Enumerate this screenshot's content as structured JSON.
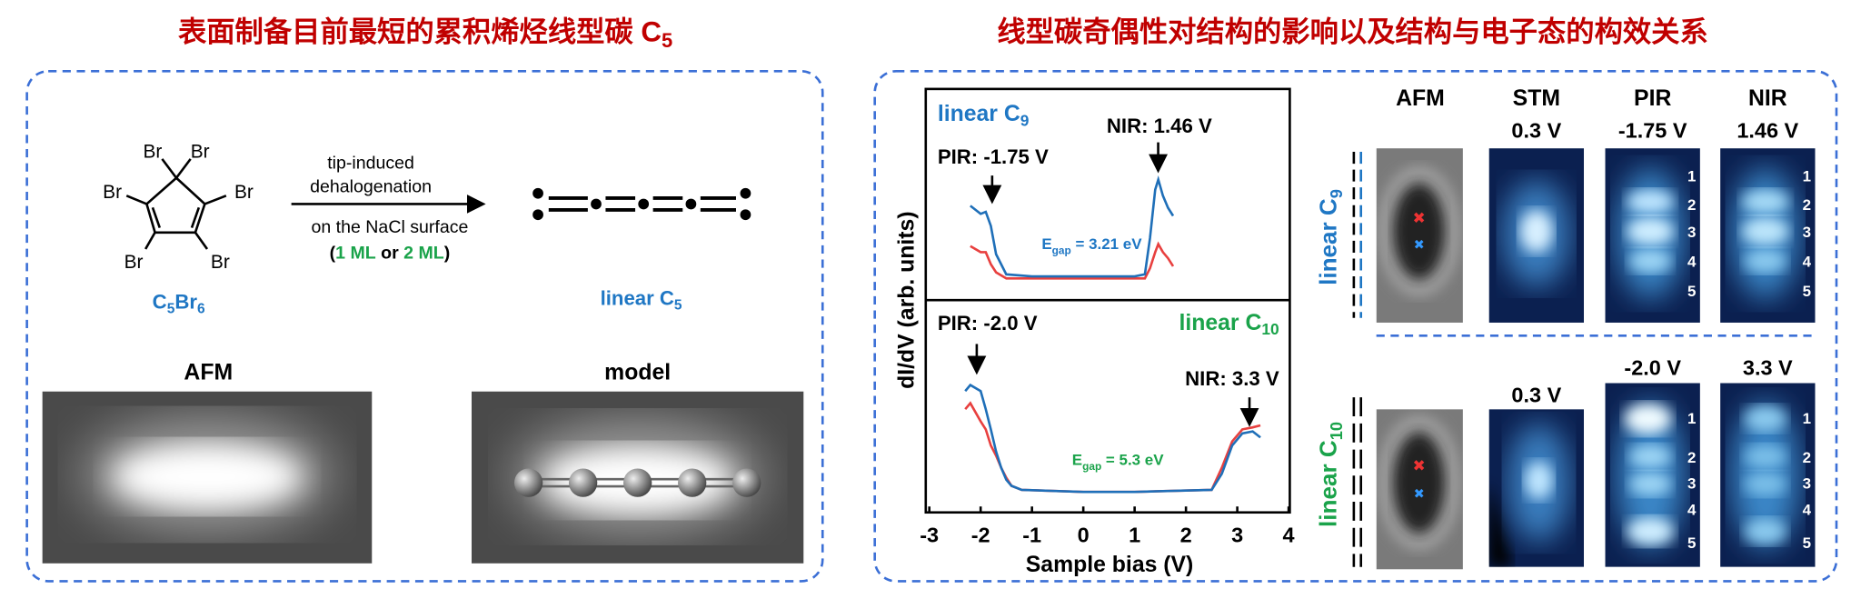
{
  "left_panel": {
    "title": [
      "表面制备目前最短的累积烯烃线型碳 C",
      "5"
    ],
    "precursor_atoms": [
      "Br",
      "Br",
      "Br",
      "Br",
      "Br",
      "Br"
    ],
    "precursor_label": [
      "C",
      "5",
      "Br",
      "6"
    ],
    "reaction_above": [
      "tip-induced",
      "dehalogenation"
    ],
    "reaction_below": "on the NaCl surface",
    "reaction_conditions": [
      "(",
      "1 ML",
      " or ",
      "2 ML",
      ")"
    ],
    "product_label": [
      "linear C",
      "5"
    ],
    "image_labels": [
      "AFM",
      "model"
    ]
  },
  "right_panel": {
    "title": "线型碳奇偶性对结构的影响以及结构与电子态的构效关系",
    "y_label": "dI/dV (arb. units)",
    "column_headers": [
      "AFM",
      "STM",
      "PIR",
      "NIR"
    ],
    "rows": [
      {
        "label": [
          "linear C",
          "9"
        ],
        "biases": [
          "0.3 V",
          "-1.75 V",
          "1.46 V"
        ],
        "orbital_numbers": [
          1,
          2,
          3,
          4,
          5
        ]
      },
      {
        "label": [
          "linear C",
          "10"
        ],
        "biases": [
          "0.3 V",
          "-2.0 V",
          "3.3 V"
        ],
        "orbital_numbers": [
          1,
          2,
          3,
          4,
          5
        ]
      }
    ]
  },
  "chart_data": [
    {
      "type": "line",
      "xlim": [
        -3,
        4
      ],
      "ylim": [
        0,
        1
      ],
      "label": [
        "linear C",
        "9"
      ],
      "pir": "PIR: -1.75 V",
      "nir": "NIR: 1.46 V",
      "gap": [
        "E",
        "gap",
        " = 3.21 eV"
      ],
      "x": [
        -2.2,
        -2.0,
        -1.9,
        -1.8,
        -1.7,
        -1.5,
        -1.0,
        0,
        1.0,
        1.2,
        1.3,
        1.4,
        1.46,
        1.55,
        1.65,
        1.75
      ],
      "series": [
        {
          "color": "#e8403f",
          "values": [
            0.25,
            0.22,
            0.22,
            0.16,
            0.12,
            0.09,
            0.09,
            0.09,
            0.09,
            0.09,
            0.14,
            0.22,
            0.26,
            0.22,
            0.19,
            0.15
          ]
        },
        {
          "color": "#1f6fb8",
          "values": [
            0.45,
            0.41,
            0.42,
            0.35,
            0.21,
            0.11,
            0.1,
            0.1,
            0.1,
            0.11,
            0.29,
            0.53,
            0.58,
            0.5,
            0.44,
            0.4
          ]
        }
      ]
    },
    {
      "type": "line",
      "xlim": [
        -3,
        4
      ],
      "ylim": [
        0,
        1
      ],
      "xticks": [
        -3,
        -2,
        -1,
        0,
        1,
        2,
        3,
        4
      ],
      "x_label": "Sample bias (V)",
      "label": [
        "linear C",
        "10"
      ],
      "pir": "PIR: -2.0 V",
      "nir": "NIR: 3.3 V",
      "gap": [
        "E",
        "gap",
        " = 5.3 eV"
      ],
      "x": [
        -2.3,
        -2.2,
        -2.0,
        -1.9,
        -1.8,
        -1.7,
        -1.6,
        -1.5,
        -1.4,
        -1.2,
        0,
        1,
        2.5,
        2.7,
        2.9,
        3.1,
        3.3,
        3.45
      ],
      "series": [
        {
          "color": "#e8403f",
          "values": [
            0.5,
            0.53,
            0.44,
            0.4,
            0.32,
            0.27,
            0.21,
            0.16,
            0.12,
            0.1,
            0.09,
            0.09,
            0.1,
            0.21,
            0.34,
            0.4,
            0.41,
            0.42
          ]
        },
        {
          "color": "#1f6fb8",
          "values": [
            0.59,
            0.62,
            0.59,
            0.5,
            0.4,
            0.29,
            0.21,
            0.15,
            0.12,
            0.1,
            0.09,
            0.09,
            0.1,
            0.18,
            0.32,
            0.38,
            0.39,
            0.36
          ]
        }
      ]
    }
  ]
}
